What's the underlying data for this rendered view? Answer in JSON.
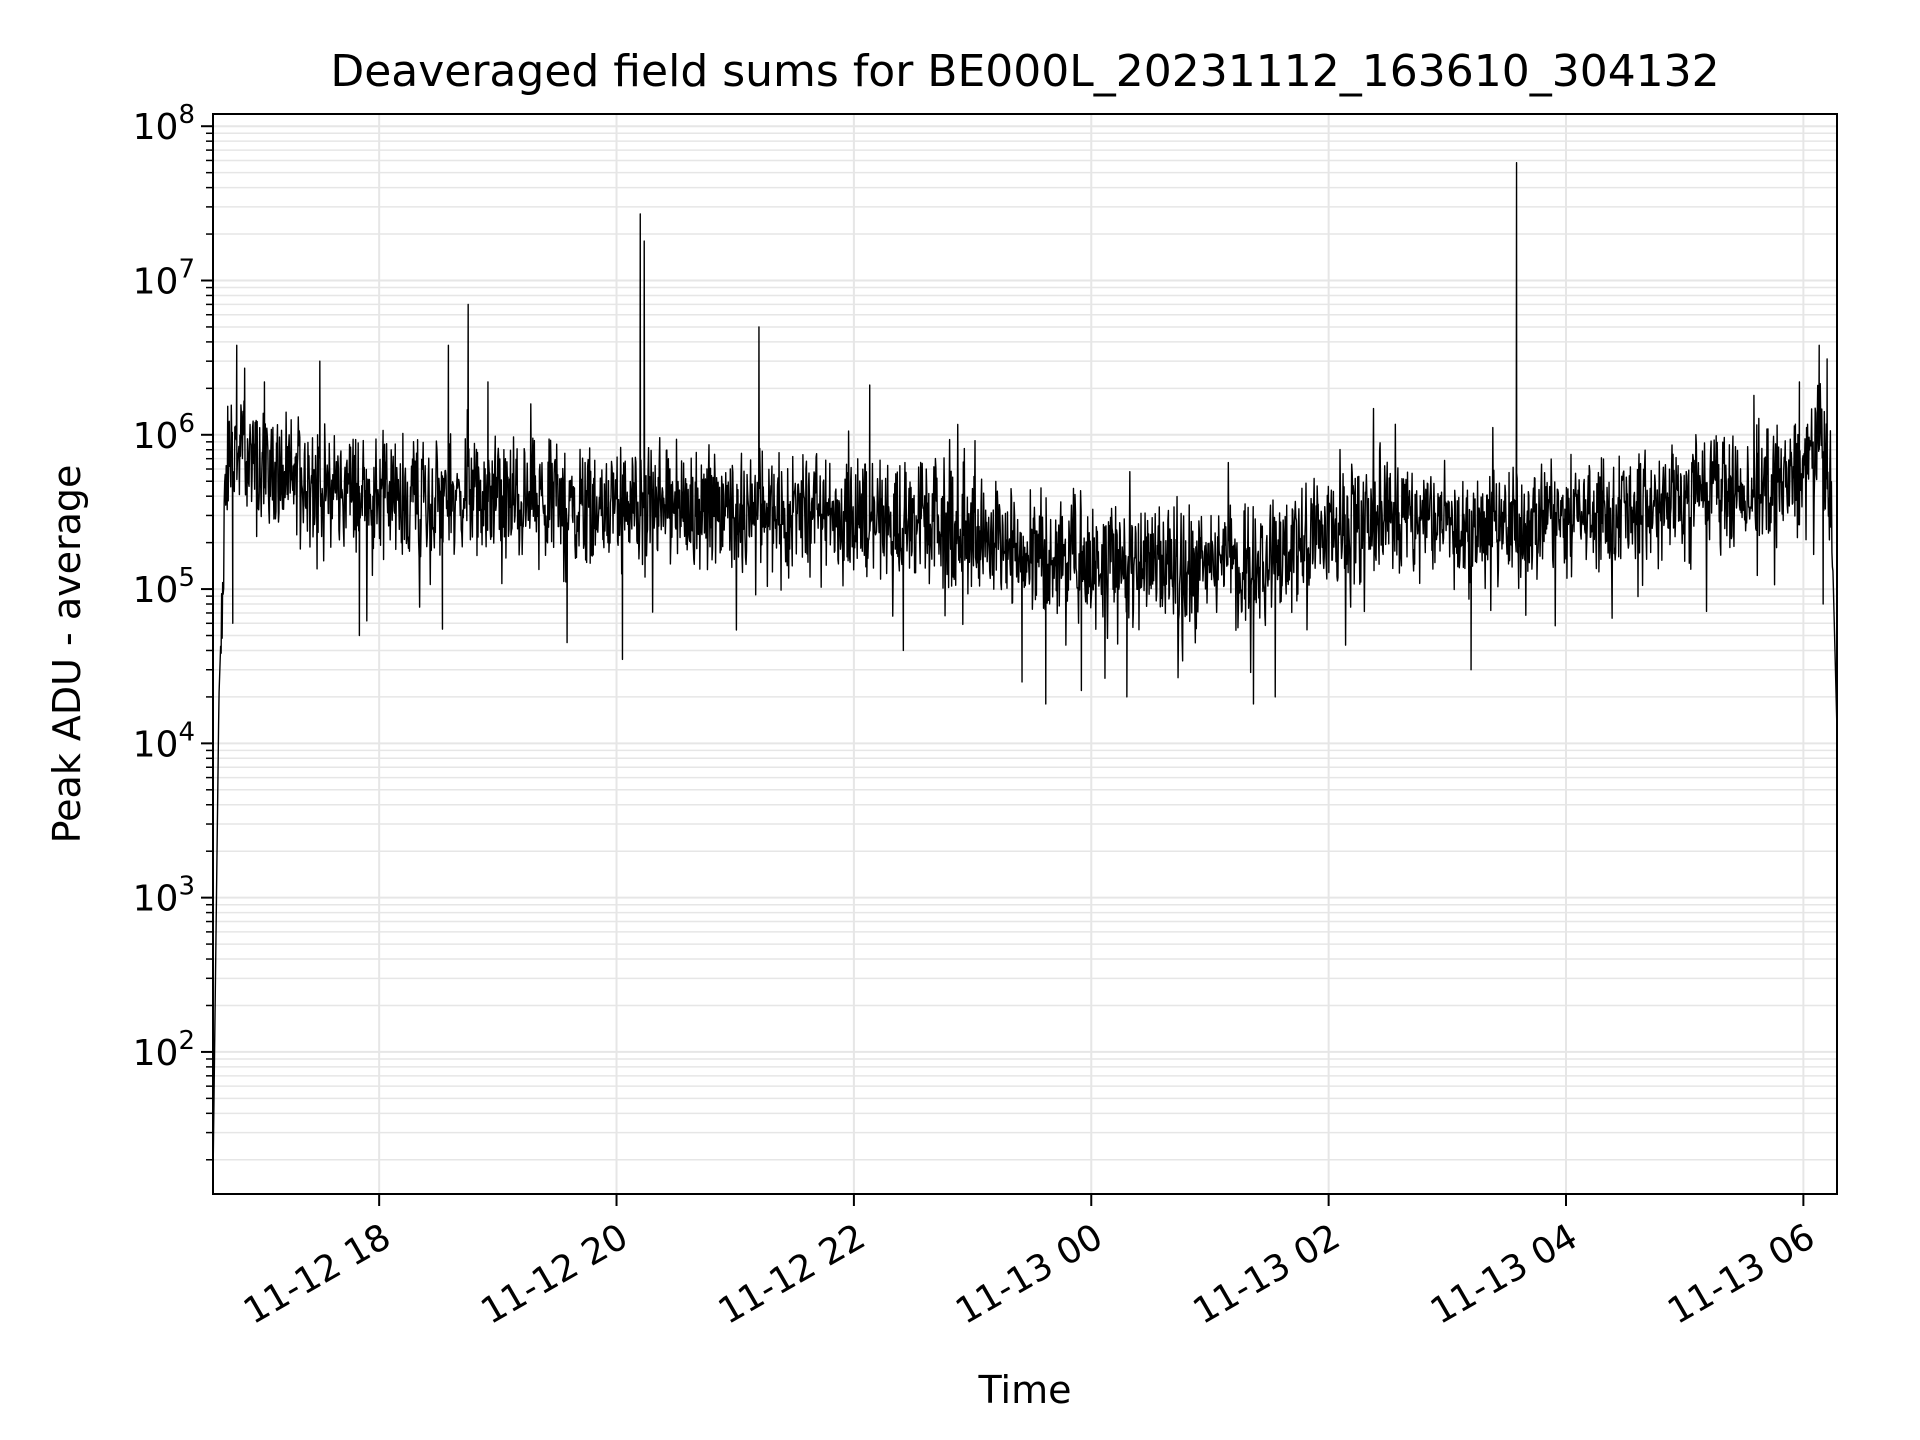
{
  "chart_data": {
    "type": "line",
    "title": "Deaveraged field sums for BE000L_20231112_163610_304132",
    "xlabel": "Time",
    "ylabel": "Peak ADU - average",
    "yscale": "log",
    "ylim": [
      12,
      120000000
    ],
    "xlim": [
      "2023-11-12 16:36",
      "2023-11-13 06:17"
    ],
    "grid": "on (major and minor, light gray)",
    "line_color": "#000000",
    "grid_color": "#e6e6e6",
    "x_ticks": [
      {
        "value": "2023-11-12 18:00",
        "label": "11-12 18"
      },
      {
        "value": "2023-11-12 20:00",
        "label": "11-12 20"
      },
      {
        "value": "2023-11-12 22:00",
        "label": "11-12 22"
      },
      {
        "value": "2023-11-13 00:00",
        "label": "11-13 00"
      },
      {
        "value": "2023-11-13 02:00",
        "label": "11-13 02"
      },
      {
        "value": "2023-11-13 04:00",
        "label": "11-13 04"
      },
      {
        "value": "2023-11-13 06:00",
        "label": "11-13 06"
      }
    ],
    "y_ticks": [
      {
        "value": 100,
        "base": "10",
        "exp": "2"
      },
      {
        "value": 1000,
        "base": "10",
        "exp": "3"
      },
      {
        "value": 10000,
        "base": "10",
        "exp": "4"
      },
      {
        "value": 100000,
        "base": "10",
        "exp": "5"
      },
      {
        "value": 1000000,
        "base": "10",
        "exp": "6"
      },
      {
        "value": 10000000,
        "base": "10",
        "exp": "7"
      },
      {
        "value": 100000000,
        "base": "10",
        "exp": "8"
      }
    ],
    "series": [
      {
        "trend_x": [
          "2023-11-12 16:36",
          "2023-11-12 16:39",
          "2023-11-12 16:43",
          "2023-11-12 16:50",
          "2023-11-12 17:05",
          "2023-11-12 17:30",
          "2023-11-12 18:00",
          "2023-11-12 18:30",
          "2023-11-12 19:00",
          "2023-11-12 19:30",
          "2023-11-12 20:00",
          "2023-11-12 20:30",
          "2023-11-12 21:00",
          "2023-11-12 21:30",
          "2023-11-12 22:00",
          "2023-11-12 22:30",
          "2023-11-12 23:00",
          "2023-11-12 23:30",
          "2023-11-13 00:00",
          "2023-11-13 00:30",
          "2023-11-13 01:00",
          "2023-11-13 01:30",
          "2023-11-13 02:00",
          "2023-11-13 02:30",
          "2023-11-13 03:00",
          "2023-11-13 03:30",
          "2023-11-13 04:00",
          "2023-11-13 04:30",
          "2023-11-13 05:00",
          "2023-11-13 05:30",
          "2023-11-13 06:00",
          "2023-11-13 06:10",
          "2023-11-13 06:14",
          "2023-11-13 06:17"
        ],
        "trend_y": [
          15,
          20000,
          700000,
          800000,
          600000,
          450000,
          420000,
          400000,
          380000,
          360000,
          350000,
          360000,
          340000,
          320000,
          310000,
          280000,
          230000,
          190000,
          150000,
          140000,
          140000,
          160000,
          230000,
          320000,
          280000,
          250000,
          300000,
          350000,
          380000,
          420000,
          550000,
          900000,
          400000,
          12000
        ],
        "spikes": [
          {
            "x": "2023-11-12 16:48",
            "y": 3800000
          },
          {
            "x": "2023-11-12 16:52",
            "y": 2700000
          },
          {
            "x": "2023-11-12 17:02",
            "y": 2200000
          },
          {
            "x": "2023-11-12 16:46",
            "y": 60000
          },
          {
            "x": "2023-11-12 17:30",
            "y": 3000000
          },
          {
            "x": "2023-11-12 17:50",
            "y": 50000
          },
          {
            "x": "2023-11-12 18:35",
            "y": 3800000
          },
          {
            "x": "2023-11-12 18:45",
            "y": 7000000
          },
          {
            "x": "2023-11-12 18:55",
            "y": 2200000
          },
          {
            "x": "2023-11-12 18:32",
            "y": 55000
          },
          {
            "x": "2023-11-12 19:35",
            "y": 45000
          },
          {
            "x": "2023-11-12 20:03",
            "y": 35000
          },
          {
            "x": "2023-11-12 20:12",
            "y": 27000000
          },
          {
            "x": "2023-11-12 20:14",
            "y": 18000000
          },
          {
            "x": "2023-11-12 21:12",
            "y": 5000000
          },
          {
            "x": "2023-11-12 22:08",
            "y": 2100000
          },
          {
            "x": "2023-11-12 22:25",
            "y": 40000
          },
          {
            "x": "2023-11-12 23:25",
            "y": 25000
          },
          {
            "x": "2023-11-12 23:37",
            "y": 18000
          },
          {
            "x": "2023-11-12 23:55",
            "y": 22000
          },
          {
            "x": "2023-11-13 00:18",
            "y": 20000
          },
          {
            "x": "2023-11-13 01:22",
            "y": 18000
          },
          {
            "x": "2023-11-13 01:33",
            "y": 20000
          },
          {
            "x": "2023-11-13 03:12",
            "y": 30000
          },
          {
            "x": "2023-11-13 03:35",
            "y": 58000000
          },
          {
            "x": "2023-11-13 05:35",
            "y": 1800000
          },
          {
            "x": "2023-11-13 05:58",
            "y": 2200000
          },
          {
            "x": "2023-11-13 06:08",
            "y": 3800000
          },
          {
            "x": "2023-11-13 06:12",
            "y": 3100000
          },
          {
            "x": "2023-11-13 06:10",
            "y": 80000
          }
        ]
      }
    ]
  }
}
